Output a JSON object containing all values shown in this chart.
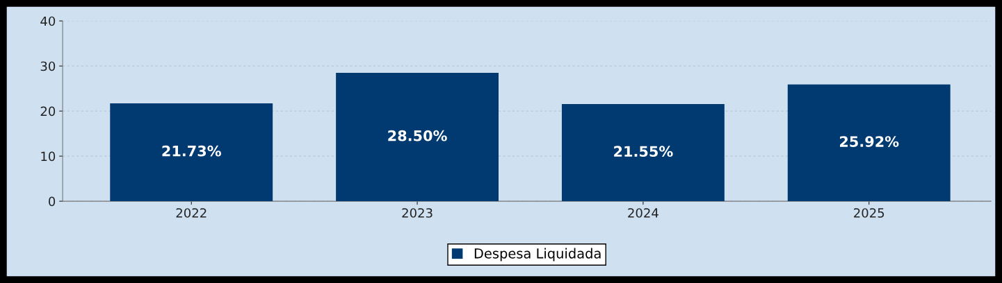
{
  "chart_data": {
    "type": "bar",
    "categories": [
      "2022",
      "2023",
      "2024",
      "2025"
    ],
    "series": [
      {
        "name": "Despesa Liquidada",
        "color": "#003a70",
        "values": [
          21.73,
          28.5,
          21.55,
          25.92
        ],
        "value_labels": [
          "21.73%",
          "28.50%",
          "21.55%",
          "25.92%"
        ]
      }
    ],
    "ylim": [
      0,
      40
    ],
    "yticks": [
      0,
      10,
      20,
      30,
      40
    ],
    "grid": "y",
    "legend": "bottom"
  }
}
